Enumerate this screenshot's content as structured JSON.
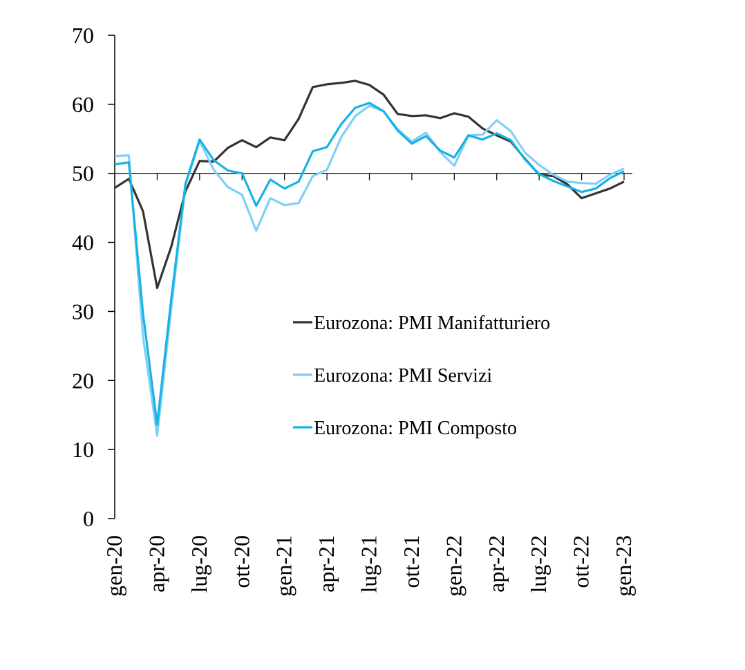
{
  "chart_data": {
    "type": "line",
    "title": "",
    "xlabel": "",
    "ylabel": "",
    "ylim": [
      0,
      70
    ],
    "yticks": [
      0,
      10,
      20,
      30,
      40,
      50,
      60,
      70
    ],
    "reference_line": 50,
    "grid": false,
    "legend_position": "center-right",
    "x": [
      "gen-20",
      "feb-20",
      "mar-20",
      "apr-20",
      "mag-20",
      "giu-20",
      "lug-20",
      "ago-20",
      "set-20",
      "ott-20",
      "nov-20",
      "dic-20",
      "gen-21",
      "feb-21",
      "mar-21",
      "apr-21",
      "mag-21",
      "giu-21",
      "lug-21",
      "ago-21",
      "set-21",
      "ott-21",
      "nov-21",
      "dic-21",
      "gen-22",
      "feb-22",
      "mar-22",
      "apr-22",
      "mag-22",
      "giu-22",
      "lug-22",
      "ago-22",
      "set-22",
      "ott-22",
      "nov-22",
      "dic-22",
      "gen-23"
    ],
    "x_tick_labels": [
      "gen-20",
      "apr-20",
      "lug-20",
      "ott-20",
      "gen-21",
      "apr-21",
      "lug-21",
      "ott-21",
      "gen-22",
      "apr-22",
      "lug-22",
      "ott-22",
      "gen-23"
    ],
    "series": [
      {
        "name": "Eurozona: PMI Manifatturiero",
        "color": "#333333",
        "values": [
          47.9,
          49.2,
          44.5,
          33.4,
          39.4,
          47.4,
          51.8,
          51.7,
          53.7,
          54.8,
          53.8,
          55.2,
          54.8,
          57.9,
          62.5,
          62.9,
          63.1,
          63.4,
          62.8,
          61.4,
          58.6,
          58.3,
          58.4,
          58.0,
          58.7,
          58.2,
          56.5,
          55.5,
          54.6,
          52.1,
          49.8,
          49.6,
          48.4,
          46.4,
          47.1,
          47.8,
          48.8
        ]
      },
      {
        "name": "Eurozona: PMI Servizi",
        "color": "#7fd0f5",
        "values": [
          52.5,
          52.6,
          26.4,
          12.0,
          30.5,
          48.3,
          54.7,
          50.5,
          48.0,
          46.9,
          41.7,
          46.4,
          45.4,
          45.7,
          49.6,
          50.5,
          55.2,
          58.3,
          59.8,
          59.0,
          56.4,
          54.6,
          55.9,
          53.1,
          51.1,
          55.5,
          55.6,
          57.7,
          56.1,
          53.0,
          51.2,
          49.8,
          48.8,
          48.6,
          48.5,
          49.8,
          50.7
        ]
      },
      {
        "name": "Eurozona: PMI Composto",
        "color": "#17b2e6",
        "values": [
          51.3,
          51.6,
          29.7,
          13.6,
          31.9,
          48.5,
          54.9,
          51.9,
          50.4,
          50.0,
          45.3,
          49.1,
          47.8,
          48.8,
          53.2,
          53.8,
          57.1,
          59.5,
          60.2,
          59.0,
          56.2,
          54.3,
          55.4,
          53.3,
          52.3,
          55.5,
          54.9,
          55.8,
          54.8,
          52.0,
          49.9,
          48.9,
          48.1,
          47.3,
          47.8,
          49.3,
          50.3
        ]
      }
    ]
  }
}
